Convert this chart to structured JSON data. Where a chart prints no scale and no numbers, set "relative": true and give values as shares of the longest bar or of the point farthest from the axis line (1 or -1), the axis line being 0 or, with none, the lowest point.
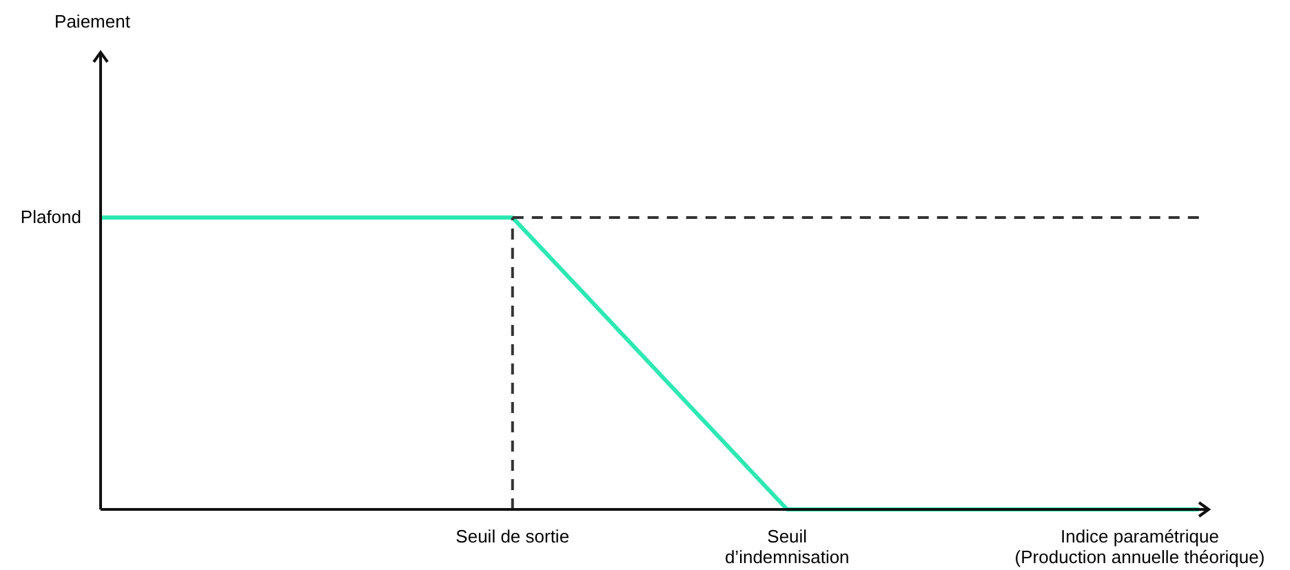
{
  "chart_data": {
    "type": "line",
    "relative": true,
    "xlabel": "Indice paramétrique (Production annuelle théorique)",
    "categories": [
      null,
      null,
      null,
      "Seuil de sortie",
      null,
      "Seuil d’indemnisation",
      null,
      null,
      null
    ],
    "annotations": [
      "Plafond",
      "Paiement"
    ],
    "marker": "none",
    "series": [
      {
        "color": "#2ee8b4",
        "values": [
          1,
          1,
          1,
          1,
          0.5,
          0,
          0,
          0,
          0
        ],
        "line_style": "solid"
      },
      {
        "type": "line",
        "color": "#333333",
        "values": [
          null,
          null,
          null,
          1,
          1,
          1,
          1,
          1,
          1
        ],
        "line_style": "dashed"
      },
      {
        "type": "line",
        "color": "#333333",
        "x": [
          "Seuil de sortie",
          "Seuil de sortie"
        ],
        "values": [
          0,
          1
        ],
        "line_style": "dashed"
      }
    ]
  }
}
